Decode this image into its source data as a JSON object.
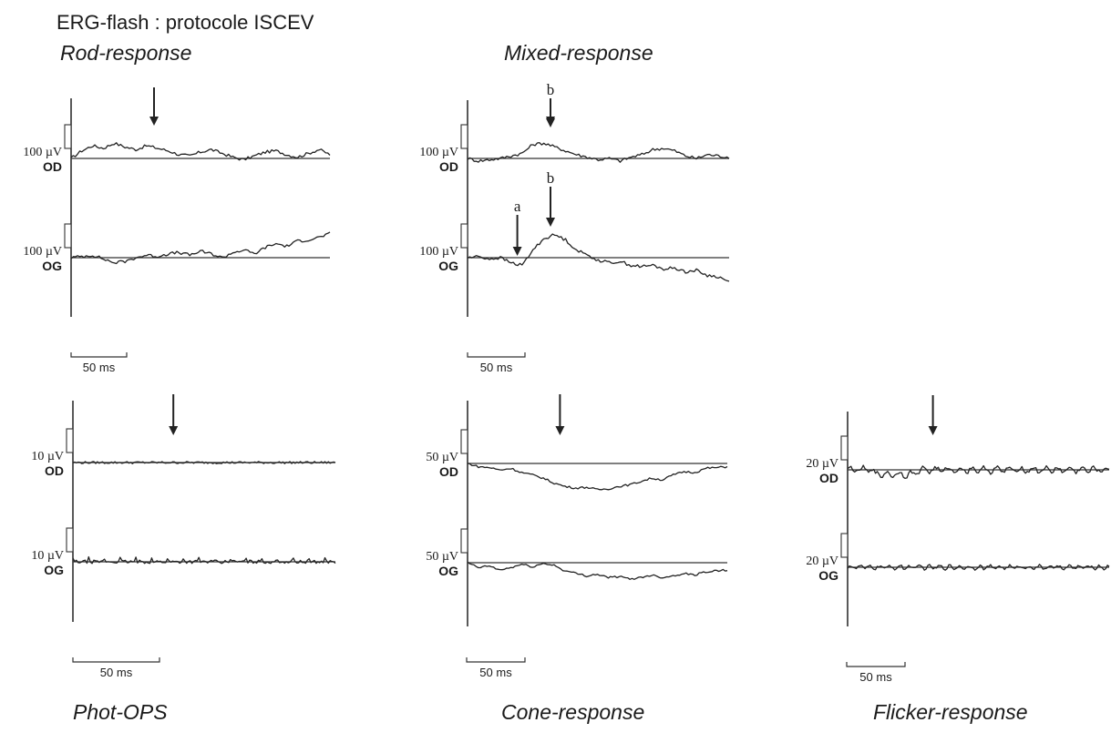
{
  "figure": {
    "title": "ERG-flash : protocole ISCEV",
    "colors": {
      "ink": "#222222",
      "background": "#ffffff"
    }
  },
  "panels": [
    {
      "id": "rod",
      "title": "Rod-response",
      "scale_label": "50 ms",
      "stimulus_arrow_ms": 70,
      "traces": [
        {
          "eye": "OD",
          "amp_label": "100 µV",
          "profile": [
            0.0,
            0.3,
            0.5,
            0.4,
            0.6,
            0.45,
            0.35,
            0.5,
            0.4,
            0.3,
            0.15,
            0.1,
            0.25,
            0.35,
            0.2,
            0.05,
            -0.05,
            0.1,
            0.25,
            0.3,
            0.15,
            0.05,
            0.2,
            0.35,
            0.15
          ]
        },
        {
          "eye": "OG",
          "amp_label": "100 µV",
          "profile": [
            0.0,
            0.05,
            0.1,
            -0.05,
            -0.2,
            -0.15,
            0.0,
            0.1,
            0.05,
            0.15,
            0.2,
            0.1,
            0.25,
            0.15,
            0.0,
            0.2,
            0.3,
            0.15,
            0.4,
            0.55,
            0.45,
            0.65,
            0.7,
            0.8,
            0.95
          ]
        }
      ],
      "annotations": []
    },
    {
      "id": "mixed",
      "title": "Mixed-response",
      "scale_label": "50 ms",
      "stimulus_arrow_ms": 70,
      "traces": [
        {
          "eye": "OD",
          "amp_label": "100 µV",
          "profile": [
            0.0,
            -0.1,
            -0.05,
            0.0,
            0.1,
            0.2,
            0.55,
            0.6,
            0.45,
            0.3,
            0.15,
            0.05,
            -0.05,
            0.0,
            -0.1,
            0.05,
            0.15,
            0.35,
            0.4,
            0.3,
            0.1,
            0.0,
            0.15,
            0.1,
            0.05
          ]
        },
        {
          "eye": "OG",
          "amp_label": "100 µV",
          "profile": [
            0.0,
            0.05,
            -0.05,
            0.0,
            -0.2,
            -0.3,
            0.3,
            0.75,
            0.9,
            0.7,
            0.3,
            0.1,
            -0.1,
            -0.2,
            -0.15,
            -0.3,
            -0.35,
            -0.3,
            -0.45,
            -0.4,
            -0.55,
            -0.5,
            -0.7,
            -0.75,
            -0.95
          ]
        }
      ],
      "annotations": [
        {
          "text": "b",
          "trace": "OD",
          "ms": 70
        },
        {
          "text": "a",
          "trace": "OG",
          "ms": 42
        },
        {
          "text": "b",
          "trace": "OG",
          "ms": 70
        }
      ]
    },
    {
      "id": "ops",
      "title": "Phot-OPS",
      "scale_label": "50 ms",
      "stimulus_arrow_ms": 58,
      "traces": [
        {
          "eye": "OD",
          "amp_label": "10 µV",
          "profile": "noise_small"
        },
        {
          "eye": "OG",
          "amp_label": "10 µV",
          "profile": "noise_spiky"
        }
      ],
      "annotations": []
    },
    {
      "id": "cone",
      "title": "Cone-response",
      "scale_label": "50 ms",
      "stimulus_arrow_ms": 78,
      "traces": [
        {
          "eye": "OD",
          "amp_label": "50 µV",
          "profile": [
            0.0,
            -0.2,
            -0.25,
            -0.4,
            -0.3,
            -0.55,
            -0.7,
            -0.9,
            -1.2,
            -1.4,
            -1.5,
            -1.45,
            -1.6,
            -1.55,
            -1.4,
            -1.3,
            -1.1,
            -0.9,
            -1.0,
            -0.7,
            -0.5,
            -0.55,
            -0.3,
            -0.25,
            -0.2
          ]
        },
        {
          "eye": "OG",
          "amp_label": "50 µV",
          "profile": [
            0.0,
            -0.3,
            -0.2,
            -0.45,
            -0.3,
            -0.1,
            -0.25,
            -0.05,
            -0.15,
            -0.5,
            -0.65,
            -0.8,
            -0.7,
            -0.9,
            -0.85,
            -1.0,
            -0.9,
            -0.75,
            -0.9,
            -0.8,
            -0.65,
            -0.75,
            -0.55,
            -0.5,
            -0.45
          ]
        }
      ],
      "annotations": []
    },
    {
      "id": "flicker",
      "title": "Flicker-response",
      "scale_label": "50 ms",
      "stimulus_arrow_ms": 72,
      "traces": [
        {
          "eye": "OD",
          "amp_label": "20 µV",
          "profile": "flicker_a"
        },
        {
          "eye": "OG",
          "amp_label": "20 µV",
          "profile": "flicker_b"
        }
      ],
      "annotations": []
    }
  ]
}
